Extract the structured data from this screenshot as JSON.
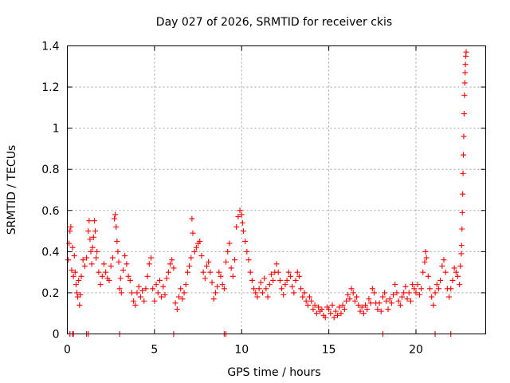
{
  "chart_data": {
    "type": "scatter",
    "title": "Day 027 of 2026, SRMTID for receiver ckis",
    "xlabel": "GPS time / hours",
    "ylabel": "SRMTID / TECUs",
    "xlim": [
      0,
      24
    ],
    "ylim": [
      0,
      1.4
    ],
    "xticks": [
      0,
      5,
      10,
      15,
      20
    ],
    "xtick_labels": [
      "0",
      "5",
      "10",
      "15",
      "20"
    ],
    "yticks": [
      0,
      0.2,
      0.4,
      0.6,
      0.8,
      1.0,
      1.2,
      1.4
    ],
    "ytick_labels": [
      "0",
      "0.2",
      "0.4",
      "0.6",
      "0.8",
      "1",
      "1.2",
      "1.4"
    ],
    "grid": true,
    "marker": "plus",
    "color": "#ff0000",
    "series": [
      {
        "name": "SRMTID",
        "points": [
          [
            0.05,
            0.36
          ],
          [
            0.1,
            0.44
          ],
          [
            0.15,
            0.5
          ],
          [
            0.2,
            0.52
          ],
          [
            0.25,
            0.31
          ],
          [
            0.3,
            0.42
          ],
          [
            0.35,
            0.28
          ],
          [
            0.4,
            0.38
          ],
          [
            0.45,
            0.3
          ],
          [
            0.5,
            0.24
          ],
          [
            0.55,
            0.2
          ],
          [
            0.6,
            0.18
          ],
          [
            0.65,
            0.26
          ],
          [
            0.7,
            0.14
          ],
          [
            0.75,
            0.19
          ],
          [
            0.8,
            0.28
          ],
          [
            0.9,
            0.36
          ],
          [
            1.0,
            0.33
          ],
          [
            1.1,
            0.37
          ],
          [
            1.2,
            0.5
          ],
          [
            1.25,
            0.55
          ],
          [
            1.3,
            0.46
          ],
          [
            1.35,
            0.4
          ],
          [
            1.4,
            0.34
          ],
          [
            1.45,
            0.42
          ],
          [
            1.5,
            0.47
          ],
          [
            1.55,
            0.55
          ],
          [
            1.6,
            0.5
          ],
          [
            1.65,
            0.37
          ],
          [
            1.7,
            0.4
          ],
          [
            1.8,
            0.3
          ],
          [
            1.9,
            0.24
          ],
          [
            2.0,
            0.28
          ],
          [
            2.1,
            0.34
          ],
          [
            2.2,
            0.3
          ],
          [
            2.3,
            0.27
          ],
          [
            2.4,
            0.26
          ],
          [
            2.5,
            0.33
          ],
          [
            2.6,
            0.37
          ],
          [
            2.7,
            0.56
          ],
          [
            2.75,
            0.58
          ],
          [
            2.8,
            0.52
          ],
          [
            2.85,
            0.45
          ],
          [
            2.9,
            0.4
          ],
          [
            2.95,
            0.35
          ],
          [
            3.0,
            0.22
          ],
          [
            3.05,
            0.27
          ],
          [
            3.1,
            0.2
          ],
          [
            3.2,
            0.31
          ],
          [
            3.3,
            0.38
          ],
          [
            3.4,
            0.34
          ],
          [
            3.5,
            0.28
          ],
          [
            3.6,
            0.26
          ],
          [
            3.7,
            0.2
          ],
          [
            3.8,
            0.16
          ],
          [
            3.9,
            0.14
          ],
          [
            4.0,
            0.2
          ],
          [
            4.1,
            0.23
          ],
          [
            4.2,
            0.18
          ],
          [
            4.3,
            0.21
          ],
          [
            4.4,
            0.16
          ],
          [
            4.5,
            0.22
          ],
          [
            4.6,
            0.28
          ],
          [
            4.7,
            0.34
          ],
          [
            4.8,
            0.37
          ],
          [
            4.9,
            0.22
          ],
          [
            5.0,
            0.16
          ],
          [
            5.1,
            0.24
          ],
          [
            5.2,
            0.2
          ],
          [
            5.3,
            0.26
          ],
          [
            5.4,
            0.18
          ],
          [
            5.5,
            0.23
          ],
          [
            5.6,
            0.19
          ],
          [
            5.7,
            0.27
          ],
          [
            5.8,
            0.3
          ],
          [
            5.9,
            0.34
          ],
          [
            6.0,
            0.36
          ],
          [
            6.1,
            0.32
          ],
          [
            6.2,
            0.15
          ],
          [
            6.3,
            0.12
          ],
          [
            6.4,
            0.18
          ],
          [
            6.5,
            0.22
          ],
          [
            6.6,
            0.17
          ],
          [
            6.7,
            0.2
          ],
          [
            6.8,
            0.24
          ],
          [
            6.9,
            0.3
          ],
          [
            7.0,
            0.33
          ],
          [
            7.1,
            0.37
          ],
          [
            7.15,
            0.56
          ],
          [
            7.2,
            0.49
          ],
          [
            7.3,
            0.4
          ],
          [
            7.4,
            0.42
          ],
          [
            7.5,
            0.44
          ],
          [
            7.6,
            0.45
          ],
          [
            7.7,
            0.38
          ],
          [
            7.8,
            0.3
          ],
          [
            7.9,
            0.27
          ],
          [
            8.0,
            0.33
          ],
          [
            8.1,
            0.35
          ],
          [
            8.2,
            0.3
          ],
          [
            8.3,
            0.25
          ],
          [
            8.4,
            0.17
          ],
          [
            8.5,
            0.2
          ],
          [
            8.6,
            0.23
          ],
          [
            8.7,
            0.3
          ],
          [
            8.8,
            0.28
          ],
          [
            8.9,
            0.24
          ],
          [
            9.0,
            0.22
          ],
          [
            9.1,
            0.35
          ],
          [
            9.2,
            0.4
          ],
          [
            9.3,
            0.44
          ],
          [
            9.4,
            0.32
          ],
          [
            9.5,
            0.28
          ],
          [
            9.6,
            0.36
          ],
          [
            9.7,
            0.52
          ],
          [
            9.8,
            0.57
          ],
          [
            9.9,
            0.6
          ],
          [
            10.0,
            0.58
          ],
          [
            10.05,
            0.54
          ],
          [
            10.1,
            0.5
          ],
          [
            10.2,
            0.45
          ],
          [
            10.3,
            0.4
          ],
          [
            10.4,
            0.36
          ],
          [
            10.5,
            0.3
          ],
          [
            10.6,
            0.26
          ],
          [
            10.7,
            0.22
          ],
          [
            10.8,
            0.2
          ],
          [
            10.9,
            0.18
          ],
          [
            11.0,
            0.22
          ],
          [
            11.1,
            0.25
          ],
          [
            11.2,
            0.2
          ],
          [
            11.3,
            0.27
          ],
          [
            11.4,
            0.22
          ],
          [
            11.5,
            0.18
          ],
          [
            11.6,
            0.24
          ],
          [
            11.7,
            0.29
          ],
          [
            11.8,
            0.26
          ],
          [
            11.9,
            0.3
          ],
          [
            12.0,
            0.34
          ],
          [
            12.1,
            0.3
          ],
          [
            12.2,
            0.26
          ],
          [
            12.3,
            0.22
          ],
          [
            12.4,
            0.19
          ],
          [
            12.5,
            0.24
          ],
          [
            12.6,
            0.26
          ],
          [
            12.7,
            0.3
          ],
          [
            12.8,
            0.28
          ],
          [
            12.9,
            0.23
          ],
          [
            13.0,
            0.2
          ],
          [
            13.1,
            0.26
          ],
          [
            13.2,
            0.3
          ],
          [
            13.3,
            0.28
          ],
          [
            13.4,
            0.22
          ],
          [
            13.5,
            0.18
          ],
          [
            13.6,
            0.2
          ],
          [
            13.7,
            0.16
          ],
          [
            13.8,
            0.14
          ],
          [
            13.9,
            0.18
          ],
          [
            14.0,
            0.16
          ],
          [
            14.1,
            0.12
          ],
          [
            14.2,
            0.14
          ],
          [
            14.3,
            0.1
          ],
          [
            14.4,
            0.13
          ],
          [
            14.5,
            0.11
          ],
          [
            14.6,
            0.12
          ],
          [
            14.7,
            0.09
          ],
          [
            14.8,
            0.08
          ],
          [
            14.9,
            0.13
          ],
          [
            15.0,
            0.12
          ],
          [
            15.1,
            0.1
          ],
          [
            15.2,
            0.14
          ],
          [
            15.3,
            0.08
          ],
          [
            15.4,
            0.11
          ],
          [
            15.5,
            0.09
          ],
          [
            15.6,
            0.13
          ],
          [
            15.7,
            0.1
          ],
          [
            15.8,
            0.14
          ],
          [
            15.9,
            0.12
          ],
          [
            16.0,
            0.16
          ],
          [
            16.1,
            0.19
          ],
          [
            16.2,
            0.17
          ],
          [
            16.3,
            0.22
          ],
          [
            16.4,
            0.2
          ],
          [
            16.5,
            0.16
          ],
          [
            16.6,
            0.18
          ],
          [
            16.7,
            0.14
          ],
          [
            16.8,
            0.11
          ],
          [
            16.9,
            0.13
          ],
          [
            17.0,
            0.1
          ],
          [
            17.1,
            0.14
          ],
          [
            17.2,
            0.12
          ],
          [
            17.3,
            0.17
          ],
          [
            17.4,
            0.15
          ],
          [
            17.5,
            0.22
          ],
          [
            17.6,
            0.2
          ],
          [
            17.7,
            0.15
          ],
          [
            17.8,
            0.12
          ],
          [
            17.9,
            0.15
          ],
          [
            18.0,
            0.11
          ],
          [
            18.1,
            0.18
          ],
          [
            18.2,
            0.2
          ],
          [
            18.3,
            0.16
          ],
          [
            18.4,
            0.12
          ],
          [
            18.5,
            0.17
          ],
          [
            18.6,
            0.15
          ],
          [
            18.7,
            0.19
          ],
          [
            18.8,
            0.24
          ],
          [
            18.9,
            0.2
          ],
          [
            19.0,
            0.16
          ],
          [
            19.1,
            0.14
          ],
          [
            19.2,
            0.18
          ],
          [
            19.3,
            0.2
          ],
          [
            19.4,
            0.23
          ],
          [
            19.5,
            0.17
          ],
          [
            19.6,
            0.2
          ],
          [
            19.7,
            0.16
          ],
          [
            19.8,
            0.24
          ],
          [
            19.9,
            0.22
          ],
          [
            20.0,
            0.2
          ],
          [
            20.1,
            0.24
          ],
          [
            20.2,
            0.19
          ],
          [
            20.3,
            0.22
          ],
          [
            20.4,
            0.3
          ],
          [
            20.5,
            0.35
          ],
          [
            20.55,
            0.4
          ],
          [
            20.6,
            0.37
          ],
          [
            20.7,
            0.28
          ],
          [
            20.8,
            0.22
          ],
          [
            20.9,
            0.18
          ],
          [
            21.0,
            0.14
          ],
          [
            21.1,
            0.2
          ],
          [
            21.2,
            0.24
          ],
          [
            21.3,
            0.22
          ],
          [
            21.4,
            0.26
          ],
          [
            21.5,
            0.33
          ],
          [
            21.6,
            0.36
          ],
          [
            21.7,
            0.3
          ],
          [
            21.8,
            0.22
          ],
          [
            21.9,
            0.18
          ],
          [
            22.0,
            0.22
          ],
          [
            22.1,
            0.26
          ],
          [
            22.2,
            0.32
          ],
          [
            22.3,
            0.3
          ],
          [
            22.4,
            0.28
          ],
          [
            22.5,
            0.24
          ],
          [
            22.55,
            0.33
          ],
          [
            22.6,
            0.39
          ],
          [
            22.62,
            0.43
          ],
          [
            22.64,
            0.51
          ],
          [
            22.66,
            0.59
          ],
          [
            22.68,
            0.68
          ],
          [
            22.7,
            0.78
          ],
          [
            22.72,
            0.87
          ],
          [
            22.74,
            0.96
          ],
          [
            22.76,
            1.07
          ],
          [
            22.78,
            1.16
          ],
          [
            22.8,
            1.22
          ],
          [
            22.82,
            1.27
          ],
          [
            22.84,
            1.31
          ],
          [
            22.86,
            1.35
          ],
          [
            22.88,
            1.37
          ],
          [
            0.15,
            0.0
          ],
          [
            0.3,
            0.0
          ],
          [
            0.35,
            0.0
          ],
          [
            1.1,
            0.0
          ],
          [
            1.2,
            0.0
          ],
          [
            3.0,
            0.0
          ],
          [
            6.1,
            0.0
          ],
          [
            9.0,
            0.0
          ],
          [
            9.1,
            0.0
          ],
          [
            18.1,
            0.0
          ],
          [
            21.1,
            0.0
          ],
          [
            22.0,
            0.0
          ]
        ]
      }
    ]
  }
}
